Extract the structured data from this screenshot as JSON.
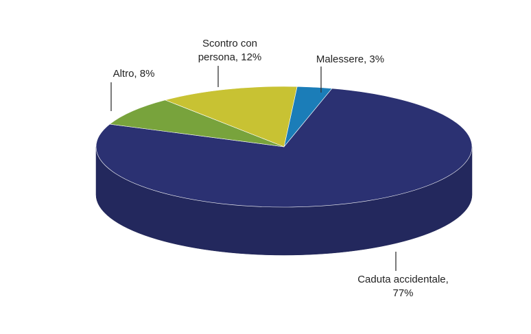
{
  "chart_data": {
    "type": "pie",
    "categories": [
      "Malessere, 3%",
      "Caduta accidentale, 77%",
      "Altro, 8%",
      "Scontro con persona, 12%"
    ],
    "values": [
      3,
      77,
      8,
      12
    ],
    "colors": [
      "#1b7db8",
      "#2b3172",
      "#78a33c",
      "#c8c233"
    ]
  }
}
